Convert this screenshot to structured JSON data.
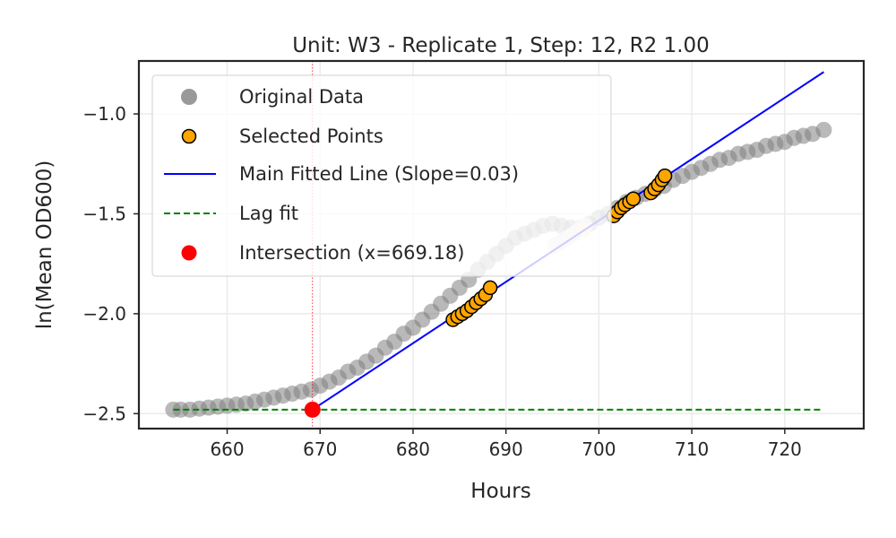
{
  "chart_data": {
    "type": "scatter",
    "title": "Unit: W3 - Replicate 1, Step: 12, R2 1.00",
    "xlabel": "Hours",
    "ylabel": "ln(Mean OD600)",
    "xlim": [
      650.5,
      728.5
    ],
    "ylim": [
      -2.575,
      -0.735
    ],
    "xticks": [
      660,
      670,
      680,
      690,
      700,
      710,
      720
    ],
    "yticks": [
      -2.5,
      -2.0,
      -1.5,
      -1.0
    ],
    "xtick_labels": [
      "660",
      "670",
      "680",
      "690",
      "700",
      "710",
      "720"
    ],
    "ytick_labels": [
      "−2.5",
      "−2.0",
      "−1.5",
      "−1.0"
    ],
    "grid": true,
    "legend_position": "top-left",
    "original_data": {
      "x": [
        654.2,
        655,
        656,
        657,
        658,
        659,
        660,
        661,
        662,
        663,
        664,
        665,
        666,
        667,
        668,
        669,
        670,
        671,
        672,
        673,
        674,
        675,
        676,
        677,
        678,
        679,
        680,
        681,
        682,
        683,
        684,
        685,
        686,
        687,
        688,
        689,
        690,
        691,
        692,
        693,
        694,
        695,
        696,
        697,
        698,
        699,
        700,
        701,
        702,
        703,
        704,
        705,
        706,
        707,
        708,
        709,
        710,
        711,
        712,
        713,
        714,
        715,
        716,
        717,
        718,
        719,
        720,
        721,
        722,
        723,
        724.2
      ],
      "y": [
        -2.48,
        -2.48,
        -2.48,
        -2.475,
        -2.47,
        -2.465,
        -2.46,
        -2.455,
        -2.45,
        -2.44,
        -2.43,
        -2.42,
        -2.41,
        -2.4,
        -2.39,
        -2.38,
        -2.36,
        -2.34,
        -2.32,
        -2.29,
        -2.27,
        -2.24,
        -2.21,
        -2.17,
        -2.14,
        -2.1,
        -2.07,
        -2.03,
        -1.99,
        -1.95,
        -1.91,
        -1.87,
        -1.83,
        -1.78,
        -1.74,
        -1.7,
        -1.66,
        -1.62,
        -1.6,
        -1.58,
        -1.56,
        -1.55,
        -1.56,
        -1.57,
        -1.57,
        -1.55,
        -1.52,
        -1.5,
        -1.47,
        -1.44,
        -1.42,
        -1.4,
        -1.38,
        -1.36,
        -1.33,
        -1.31,
        -1.29,
        -1.27,
        -1.25,
        -1.23,
        -1.22,
        -1.2,
        -1.19,
        -1.18,
        -1.16,
        -1.15,
        -1.14,
        -1.12,
        -1.11,
        -1.1,
        -1.08
      ]
    },
    "faded_points": {
      "x": [
        695.3,
        696,
        696.5,
        697,
        697.5,
        698,
        698.5
      ],
      "y": [
        -1.655,
        -1.64,
        -1.625,
        -1.61,
        -1.595,
        -1.575,
        -1.56
      ]
    },
    "selected_points": {
      "x": [
        684.3,
        684.8,
        685.3,
        685.8,
        686.3,
        686.8,
        687.3,
        687.8,
        688.3,
        701.6,
        702.0,
        702.4,
        702.8,
        703.3,
        703.7,
        705.6,
        706.0,
        706.4,
        706.8,
        707.1
      ],
      "y": [
        -2.03,
        -2.015,
        -2.0,
        -1.985,
        -1.965,
        -1.945,
        -1.925,
        -1.905,
        -1.87,
        -1.51,
        -1.49,
        -1.47,
        -1.455,
        -1.44,
        -1.425,
        -1.395,
        -1.375,
        -1.355,
        -1.33,
        -1.31
      ]
    },
    "fitted_line": {
      "x": [
        669.18,
        724.2
      ],
      "y": [
        -2.48,
        -0.79
      ]
    },
    "lag_fit": {
      "x": [
        654.2,
        724.2
      ],
      "y": [
        -2.48,
        -2.48
      ]
    },
    "intersection": {
      "x": 669.18,
      "y": -2.48
    },
    "legend": [
      "Original Data",
      "Selected Points",
      "Main Fitted Line (Slope=0.03)",
      "Lag fit",
      "Intersection (x=669.18)"
    ],
    "colors": {
      "original": "#808080",
      "selected_fill": "#ffa500",
      "selected_edge": "#000000",
      "fitted_line": "#0000ff",
      "lag_fit": "#008000",
      "intersection": "#ff0000",
      "grid": "#ebebeb",
      "axes": "#262626"
    }
  }
}
